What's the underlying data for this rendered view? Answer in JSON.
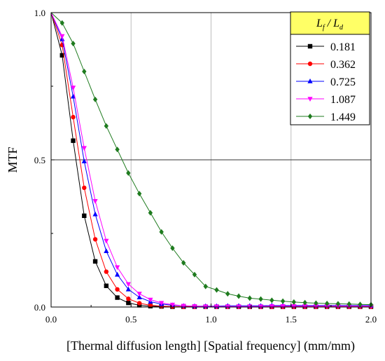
{
  "chart_data": {
    "type": "line",
    "xlabel": "[Thermal diffusion length] [Spatial frequency] (mm/mm)",
    "ylabel": "MTF",
    "xlim": [
      0,
      2.0
    ],
    "ylim": [
      0,
      1.0
    ],
    "xticks": [
      "0.0",
      "0.5",
      "1.0",
      "1.5",
      "2.0"
    ],
    "yticks": [
      "0.0",
      "0.5",
      "1.0"
    ],
    "grid": "vertical lines at x ticks, horizontal line at y=0.5",
    "legend": {
      "placement": "top-right",
      "title_main": "L",
      "title_sub1": "f",
      "title_sep": " / ",
      "title_main2": "L",
      "title_sub2": "d",
      "title_bg": "#ffff66"
    },
    "series": [
      {
        "name": "0.181",
        "color": "#000000",
        "marker": "square",
        "x": [
          0,
          0.069,
          0.138,
          0.207,
          0.276,
          0.345,
          0.414,
          0.483,
          0.552,
          0.621,
          0.69,
          0.759,
          0.828,
          0.897,
          0.966,
          1.035,
          1.104,
          1.173,
          1.242,
          1.311,
          1.38,
          1.449,
          1.518,
          1.587,
          1.656,
          1.725,
          1.794,
          1.863,
          1.932,
          2.0
        ],
        "y": [
          1.0,
          0.855,
          0.565,
          0.31,
          0.155,
          0.072,
          0.032,
          0.014,
          0.006,
          0.003,
          0.002,
          0.001,
          0.001,
          0.001,
          0.001,
          0.001,
          0.001,
          0.001,
          0.001,
          0.001,
          0.001,
          0.001,
          0.001,
          0.001,
          0.001,
          0.001,
          0.001,
          0.001,
          0.001,
          0.001
        ]
      },
      {
        "name": "0.362",
        "color": "#ff0000",
        "marker": "circle",
        "x": [
          0,
          0.069,
          0.138,
          0.207,
          0.276,
          0.345,
          0.414,
          0.483,
          0.552,
          0.621,
          0.69,
          0.759,
          0.828,
          0.897,
          0.966,
          1.035,
          1.104,
          1.173,
          1.242,
          1.311,
          1.38,
          1.449,
          1.518,
          1.587,
          1.656,
          1.725,
          1.794,
          1.863,
          1.932,
          2.0
        ],
        "y": [
          1.0,
          0.89,
          0.645,
          0.405,
          0.23,
          0.12,
          0.06,
          0.028,
          0.013,
          0.006,
          0.003,
          0.002,
          0.001,
          0.001,
          0.001,
          0.001,
          0.001,
          0.001,
          0.001,
          0.001,
          0.001,
          0.001,
          0.001,
          0.001,
          0.001,
          0.001,
          0.001,
          0.001,
          0.001,
          0.001
        ]
      },
      {
        "name": "0.725",
        "color": "#0000ff",
        "marker": "triangle-up",
        "x": [
          0,
          0.069,
          0.138,
          0.207,
          0.276,
          0.345,
          0.414,
          0.483,
          0.552,
          0.621,
          0.69,
          0.759,
          0.828,
          0.897,
          0.966,
          1.035,
          1.104,
          1.173,
          1.242,
          1.311,
          1.38,
          1.449,
          1.518,
          1.587,
          1.656,
          1.725,
          1.794,
          1.863,
          1.932,
          2.0
        ],
        "y": [
          1.0,
          0.91,
          0.715,
          0.495,
          0.315,
          0.19,
          0.11,
          0.06,
          0.033,
          0.018,
          0.01,
          0.006,
          0.004,
          0.003,
          0.003,
          0.003,
          0.004,
          0.004,
          0.004,
          0.004,
          0.005,
          0.005,
          0.005,
          0.005,
          0.005,
          0.005,
          0.005,
          0.005,
          0.005,
          0.005
        ]
      },
      {
        "name": "1.087",
        "color": "#ff00ff",
        "marker": "triangle-down",
        "x": [
          0,
          0.069,
          0.138,
          0.207,
          0.276,
          0.345,
          0.414,
          0.483,
          0.552,
          0.621,
          0.69,
          0.759,
          0.828,
          0.897,
          0.966,
          1.035,
          1.104,
          1.173,
          1.242,
          1.311,
          1.38,
          1.449,
          1.518,
          1.587,
          1.656,
          1.725,
          1.794,
          1.863,
          1.932,
          2.0
        ],
        "y": [
          1.0,
          0.92,
          0.745,
          0.54,
          0.36,
          0.225,
          0.135,
          0.078,
          0.045,
          0.025,
          0.014,
          0.008,
          0.004,
          0.003,
          0.002,
          0.002,
          0.002,
          0.002,
          0.002,
          0.002,
          0.003,
          0.003,
          0.003,
          0.003,
          0.003,
          0.003,
          0.003,
          0.003,
          0.003,
          0.003
        ]
      },
      {
        "name": "1.449",
        "color": "#1e7b1e",
        "marker": "diamond",
        "x": [
          0,
          0.069,
          0.138,
          0.207,
          0.276,
          0.345,
          0.414,
          0.483,
          0.552,
          0.621,
          0.69,
          0.759,
          0.828,
          0.897,
          0.966,
          1.035,
          1.104,
          1.173,
          1.242,
          1.311,
          1.38,
          1.449,
          1.518,
          1.587,
          1.656,
          1.725,
          1.794,
          1.863,
          1.932,
          2.0
        ],
        "y": [
          1.0,
          0.965,
          0.895,
          0.8,
          0.705,
          0.615,
          0.535,
          0.455,
          0.385,
          0.32,
          0.255,
          0.2,
          0.15,
          0.11,
          0.07,
          0.058,
          0.045,
          0.037,
          0.03,
          0.027,
          0.023,
          0.02,
          0.017,
          0.015,
          0.013,
          0.012,
          0.011,
          0.01,
          0.009,
          0.008
        ]
      }
    ]
  }
}
